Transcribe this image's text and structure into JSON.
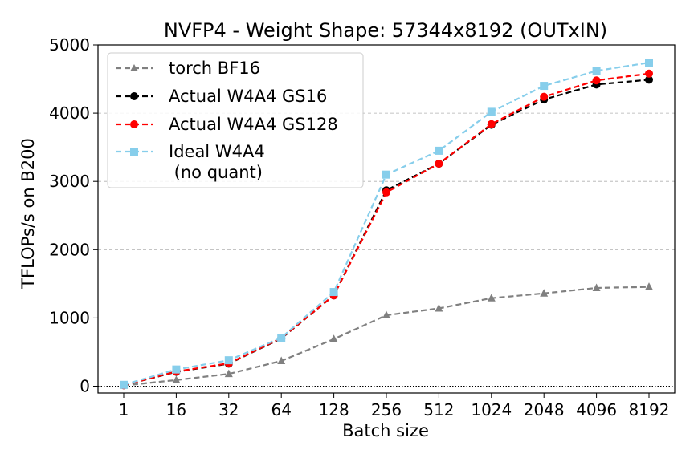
{
  "chart_data": {
    "type": "line",
    "title": "NVFP4 - Weight Shape: 57344x8192 (OUTxIN)",
    "xlabel": "Batch size",
    "ylabel": "TFLOPs/s on B200",
    "categories": [
      "1",
      "16",
      "32",
      "64",
      "128",
      "256",
      "512",
      "1024",
      "2048",
      "4096",
      "8192"
    ],
    "ylim": [
      -100,
      5000
    ],
    "yticks": [
      0,
      1000,
      2000,
      3000,
      4000,
      5000
    ],
    "grid": "horizontal dashed",
    "legend_position": "top-left",
    "series": [
      {
        "name": "torch BF16",
        "color": "#808080",
        "marker": "triangle",
        "values": [
          10,
          90,
          180,
          370,
          690,
          1040,
          1140,
          1290,
          1360,
          1440,
          1455
        ]
      },
      {
        "name": "Actual W4A4 GS16",
        "color": "#000000",
        "marker": "circle",
        "values": [
          15,
          210,
          330,
          700,
          1330,
          2870,
          3260,
          3830,
          4200,
          4420,
          4490
        ]
      },
      {
        "name": "Actual W4A4 GS128",
        "color": "#ff0000",
        "marker": "circle",
        "values": [
          15,
          215,
          335,
          705,
          1330,
          2840,
          3260,
          3840,
          4240,
          4480,
          4580
        ]
      },
      {
        "name_lines": [
          "Ideal W4A4",
          " (no quant)"
        ],
        "color": "#87ceeb",
        "marker": "square",
        "values": [
          20,
          245,
          380,
          710,
          1380,
          3100,
          3450,
          4020,
          4400,
          4620,
          4740
        ]
      }
    ]
  }
}
